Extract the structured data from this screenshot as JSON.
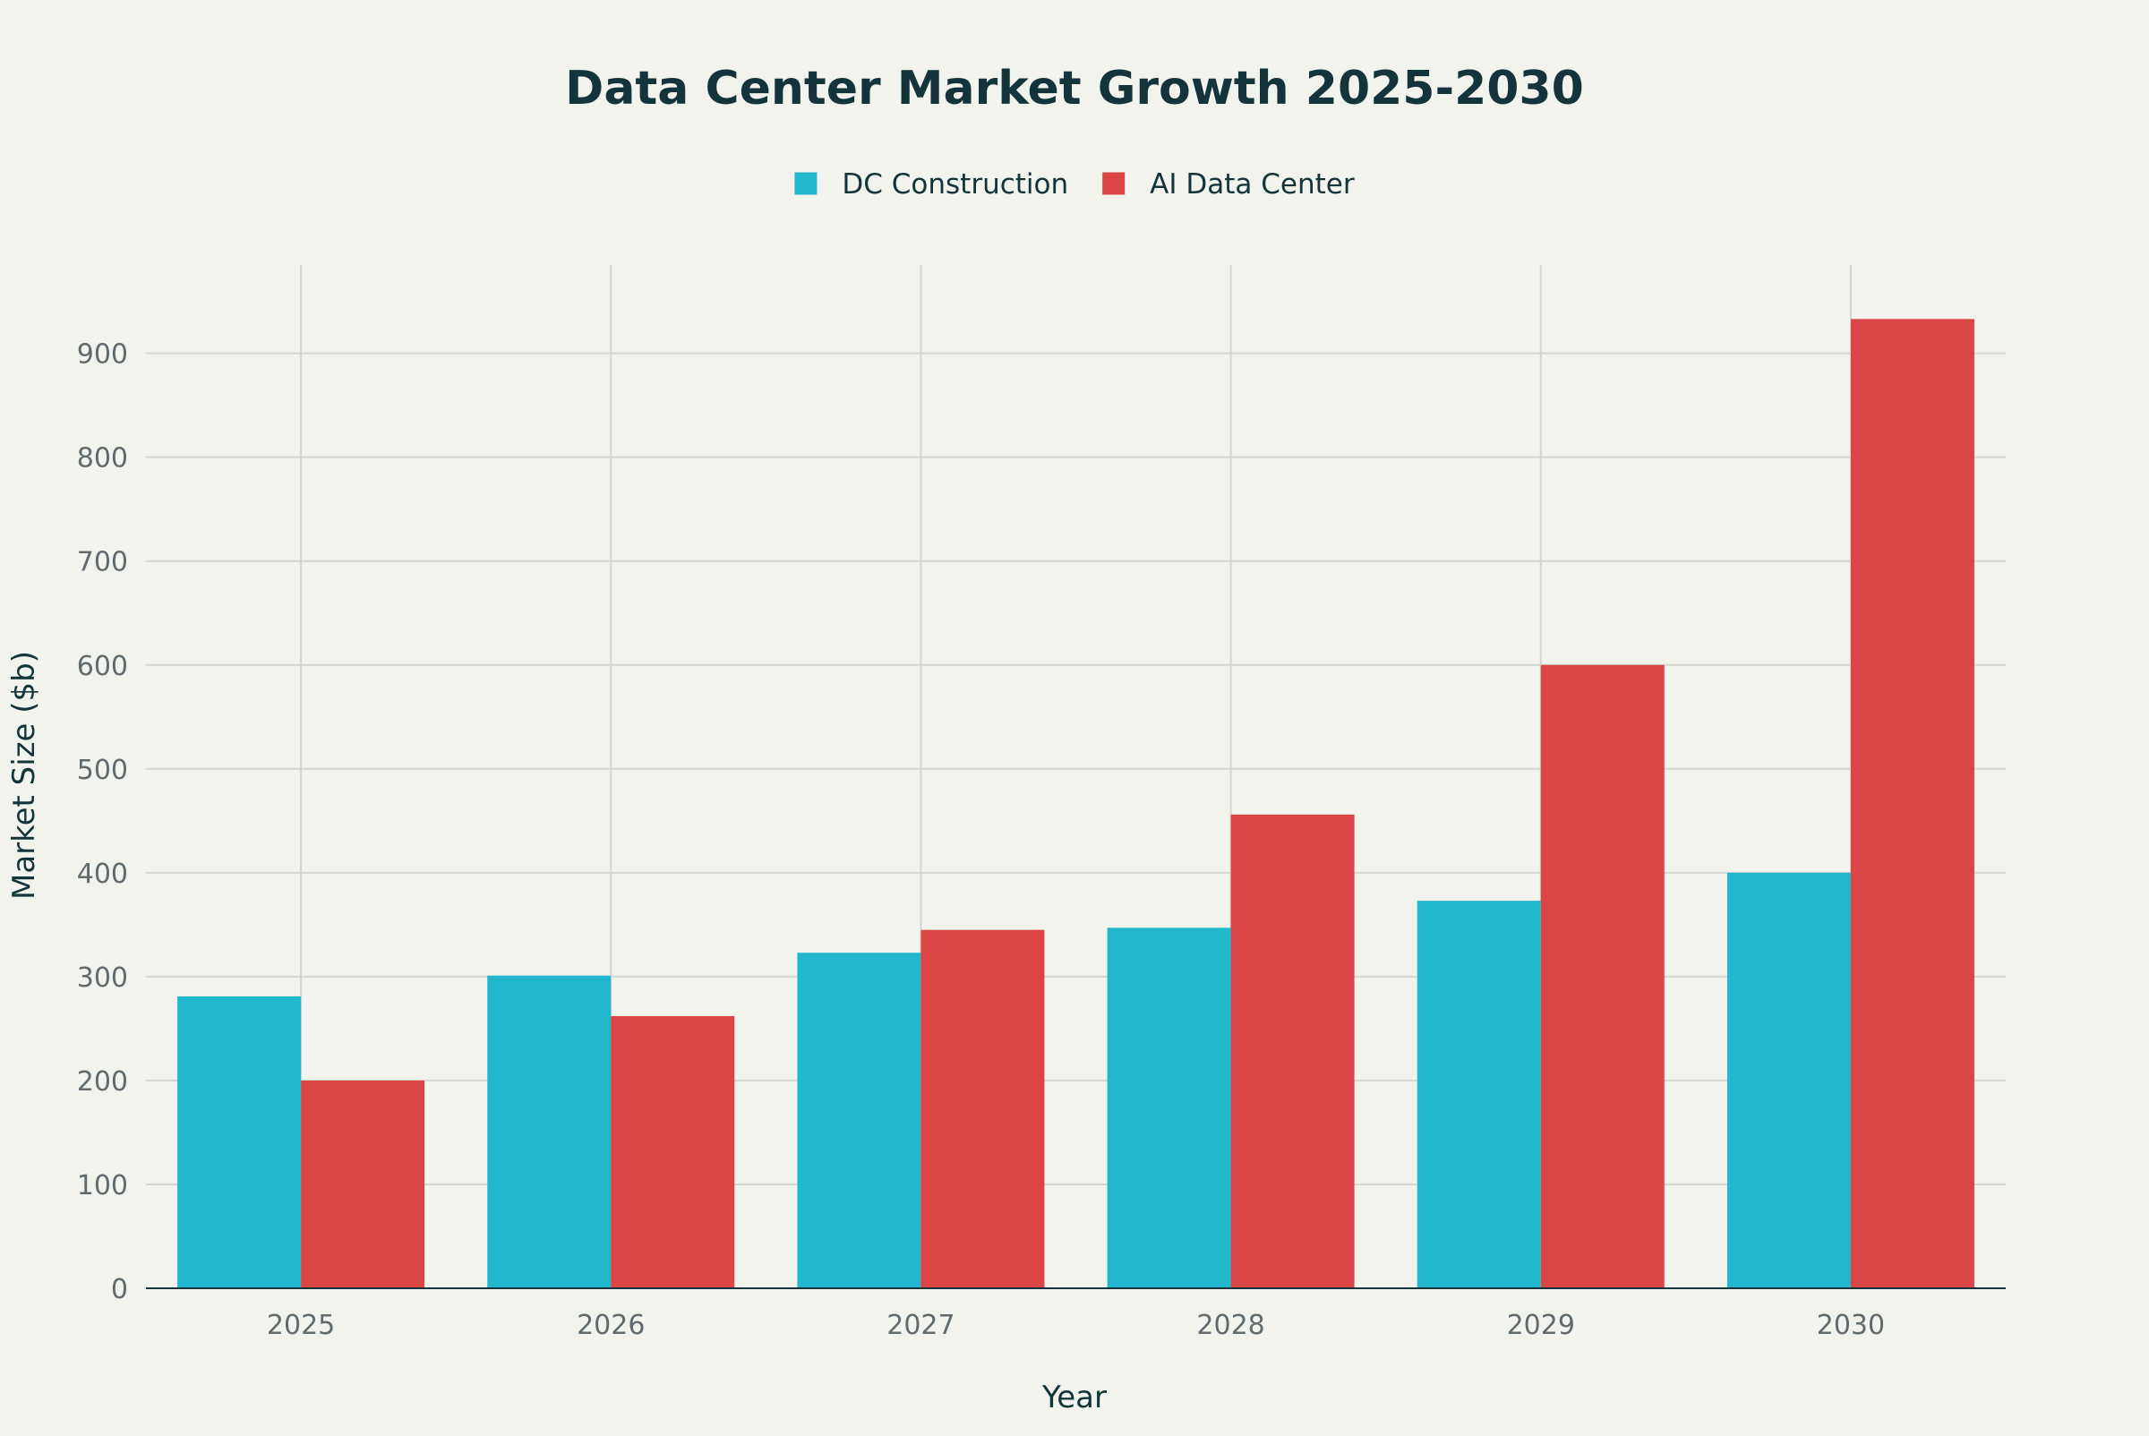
{
  "chart_data": {
    "type": "bar",
    "title": "Data Center Market Growth 2025-2030",
    "xlabel": "Year",
    "ylabel": "Market Size ($b)",
    "categories": [
      "2025",
      "2026",
      "2027",
      "2028",
      "2029",
      "2030"
    ],
    "series": [
      {
        "name": "DC Construction",
        "color": "#21b8cd",
        "values": [
          281,
          301,
          323,
          347,
          373,
          400
        ]
      },
      {
        "name": "AI Data Center",
        "color": "#db4545",
        "values": [
          200,
          262,
          345,
          456,
          600,
          933
        ]
      }
    ],
    "ylim": [
      0,
      985
    ],
    "yticks": [
      0,
      100,
      200,
      300,
      400,
      500,
      600,
      700,
      800,
      900
    ],
    "grid": true,
    "legend_position": "top-center",
    "background": "#f3f3ee"
  }
}
